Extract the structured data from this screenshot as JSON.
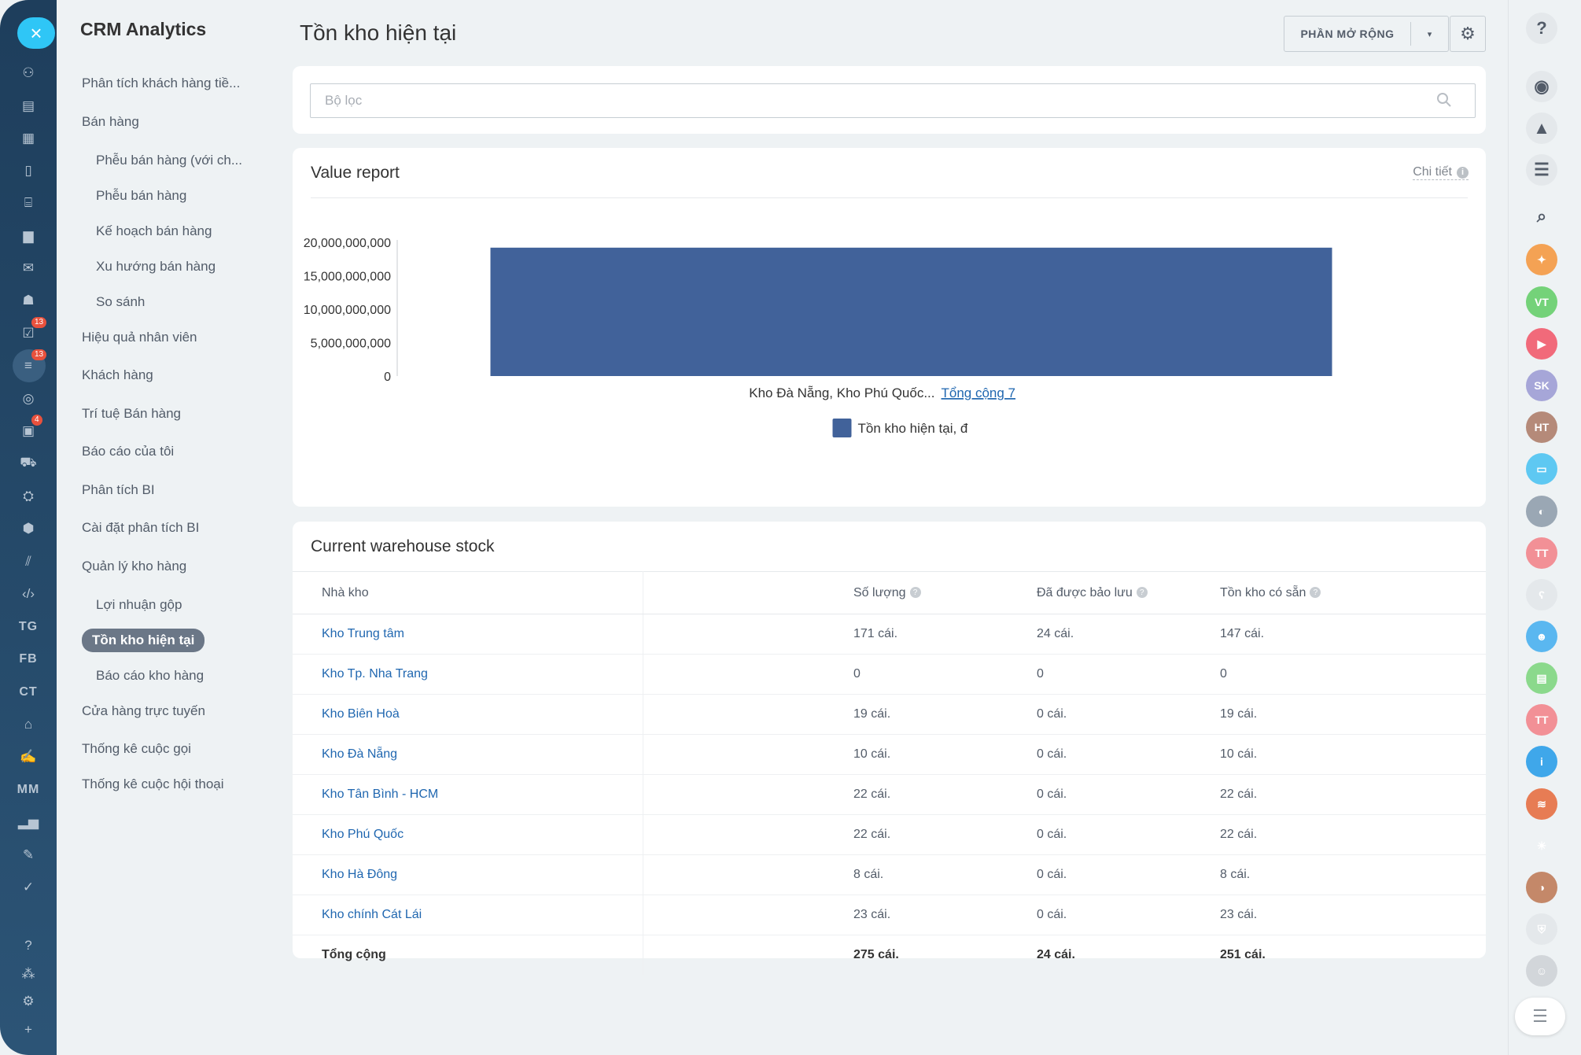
{
  "left_rail": {
    "close_glyph": "×",
    "icons": [
      {
        "name": "activity-icon",
        "glyph": "⚇",
        "top": 76
      },
      {
        "name": "feed-icon",
        "glyph": "▤",
        "top": 118
      },
      {
        "name": "calendar-icon",
        "glyph": "▦",
        "top": 159
      },
      {
        "name": "document-icon",
        "glyph": "▯",
        "top": 200
      },
      {
        "name": "inbox-icon",
        "glyph": "⌸",
        "top": 241
      },
      {
        "name": "chat-icon",
        "glyph": "▆",
        "top": 283
      },
      {
        "name": "mail-icon",
        "glyph": "✉",
        "top": 324
      },
      {
        "name": "contacts-icon",
        "glyph": "☗",
        "top": 365
      },
      {
        "name": "tasks-icon",
        "glyph": "☑",
        "top": 407,
        "badge": "13"
      },
      {
        "name": "funnel-icon",
        "glyph": "≡",
        "top": 448,
        "badge": "13",
        "active": true
      },
      {
        "name": "target-icon",
        "glyph": "◎",
        "top": 490
      },
      {
        "name": "crm-card-icon",
        "glyph": "▣",
        "top": 531,
        "badge": "4"
      },
      {
        "name": "cart-icon",
        "glyph": "⛟",
        "top": 572
      },
      {
        "name": "robot-icon",
        "glyph": "⛭",
        "top": 614
      },
      {
        "name": "box-icon",
        "glyph": "⬢",
        "top": 655
      },
      {
        "name": "analytics-icon",
        "glyph": "⫽",
        "top": 697
      },
      {
        "name": "code-icon",
        "glyph": "‹/›",
        "top": 738
      },
      {
        "name": "tg-label",
        "text": "TG",
        "top": 780
      },
      {
        "name": "fb-label",
        "text": "FB",
        "top": 821
      },
      {
        "name": "ct-label",
        "text": "CT",
        "top": 863
      },
      {
        "name": "bank-icon",
        "glyph": "⌂",
        "top": 904
      },
      {
        "name": "sign-icon",
        "glyph": "✍",
        "top": 945
      },
      {
        "name": "mm-label",
        "text": "MM",
        "top": 987
      },
      {
        "name": "bar-chart-icon",
        "glyph": "▂▅",
        "top": 1028
      },
      {
        "name": "edit-list-icon",
        "glyph": "✎",
        "top": 1070
      },
      {
        "name": "check-circle-icon",
        "glyph": "✓",
        "top": 1111
      },
      {
        "name": "help-icon",
        "glyph": "?",
        "top": 1185
      },
      {
        "name": "sitemap-icon",
        "glyph": "⁂",
        "top": 1221
      },
      {
        "name": "settings-icon",
        "glyph": "⚙",
        "top": 1256
      },
      {
        "name": "add-icon",
        "glyph": "+",
        "top": 1292
      }
    ]
  },
  "menu": {
    "title": "CRM Analytics",
    "items": [
      {
        "label": "Phân tích khách hàng tiề...",
        "top": 96,
        "level": 0
      },
      {
        "label": "Bán hàng",
        "top": 145,
        "level": 0
      },
      {
        "label": "Phễu bán hàng (với ch...",
        "top": 194,
        "level": 1
      },
      {
        "label": "Phễu bán hàng",
        "top": 239,
        "level": 1
      },
      {
        "label": "Kế hoạch bán hàng",
        "top": 284,
        "level": 1
      },
      {
        "label": "Xu hướng bán hàng",
        "top": 329,
        "level": 1
      },
      {
        "label": "So sánh",
        "top": 374,
        "level": 1
      },
      {
        "label": "Hiệu quả nhân viên",
        "top": 419,
        "level": 0
      },
      {
        "label": "Khách hàng",
        "top": 467,
        "level": 0
      },
      {
        "label": "Trí tuệ Bán hàng",
        "top": 516,
        "level": 0
      },
      {
        "label": "Báo cáo của tôi",
        "top": 564,
        "level": 0
      },
      {
        "label": "Phân tích BI",
        "top": 613,
        "level": 0
      },
      {
        "label": "Cài đặt phân tích BI",
        "top": 661,
        "level": 0
      },
      {
        "label": "Quản lý kho hàng",
        "top": 710,
        "level": 0
      },
      {
        "label": "Lợi nhuận gộp",
        "top": 759,
        "level": 1
      },
      {
        "label": "Tồn kho hiện tại",
        "top": 804,
        "level": 1,
        "active": true
      },
      {
        "label": "Báo cáo kho hàng",
        "top": 849,
        "level": 1
      },
      {
        "label": "Cửa hàng trực tuyến",
        "top": 894,
        "level": 0
      },
      {
        "label": "Thống kê cuộc gọi",
        "top": 942,
        "level": 0
      },
      {
        "label": "Thống kê cuộc hội thoại",
        "top": 987,
        "level": 0
      }
    ]
  },
  "header": {
    "title": "Tồn kho hiện tại",
    "extensions_label": "PHẦN MỞ RỘNG",
    "caret": "▾",
    "gear": "⚙"
  },
  "filter": {
    "placeholder": "Bộ lọc",
    "value": ""
  },
  "value_report": {
    "title": "Value report",
    "details_label": "Chi tiết",
    "info_glyph": "i",
    "category_label": "Kho Đà Nẵng, Kho Phú Quốc...",
    "total_link": "Tổng cộng 7"
  },
  "chart_data": {
    "type": "bar",
    "title": "Value report",
    "categories": [
      "Kho Đà Nẵng, Kho Phú Quốc... Tổng cộng 7"
    ],
    "series": [
      {
        "name": "Tồn kho hiện tại, đ",
        "color": "#41629a",
        "values": [
          19200000000
        ]
      }
    ],
    "yticks": [
      0,
      5000000000,
      10000000000,
      15000000000,
      20000000000
    ],
    "ytick_labels": [
      "0",
      "5,000,000,000",
      "10,000,000,000",
      "15,000,000,000",
      "20,000,000,000"
    ],
    "ylim": [
      0,
      20000000000
    ],
    "legend_position": "bottom-center",
    "grid": false
  },
  "stock": {
    "title": "Current warehouse stock",
    "columns": [
      "Nhà kho",
      "Số lượng",
      "Đã được bảo lưu",
      "Tồn kho có sẵn"
    ],
    "hint_glyph": "?",
    "rows": [
      [
        "Kho Trung tâm",
        "171 cái.",
        "24 cái.",
        "147 cái."
      ],
      [
        "Kho Tp. Nha Trang",
        "0",
        "0",
        "0"
      ],
      [
        "Kho Biên Hoà",
        "19 cái.",
        "0 cái.",
        "19 cái."
      ],
      [
        "Kho Đà Nẵng",
        "10 cái.",
        "0 cái.",
        "10 cái."
      ],
      [
        "Kho Tân Bình - HCM",
        "22 cái.",
        "0 cái.",
        "22 cái."
      ],
      [
        "Kho Phú Quốc",
        "22 cái.",
        "0 cái.",
        "22 cái."
      ],
      [
        "Kho Hà Đông",
        "8 cái.",
        "0 cái.",
        "8 cái."
      ],
      [
        "Kho chính Cát Lái",
        "23 cái.",
        "0 cái.",
        "23 cái."
      ]
    ],
    "total": [
      "Tổng cộng",
      "275 cái.",
      "24 cái.",
      "251 cái."
    ]
  },
  "right_rail": {
    "items": [
      {
        "name": "help-icon",
        "glyph": "?",
        "top": 16,
        "bg": "#e4e8eb",
        "plain": true
      },
      {
        "name": "copilot-icon",
        "glyph": "◉",
        "top": 90,
        "bg": "#e4e8eb",
        "plain": true
      },
      {
        "name": "bell-icon",
        "glyph": "▲",
        "top": 143,
        "bg": "#e4e8eb",
        "plain": true
      },
      {
        "name": "messages-icon",
        "glyph": "☰",
        "top": 196,
        "bg": "#e4e8eb",
        "plain": true
      },
      {
        "name": "search-icon",
        "glyph": "⌕",
        "top": 255,
        "bg": "transparent",
        "plain": true
      },
      {
        "name": "marketing-avatar",
        "glyph": "✦",
        "top": 310,
        "bg": "#f4a254"
      },
      {
        "name": "avatar-vt",
        "glyph": "VT",
        "top": 364,
        "bg": "#74d279"
      },
      {
        "name": "video-icon",
        "glyph": "▶",
        "top": 417,
        "bg": "#f16a7a"
      },
      {
        "name": "avatar-sk",
        "glyph": "SK",
        "top": 470,
        "bg": "#a6a6d8"
      },
      {
        "name": "avatar-ht",
        "glyph": "HT",
        "top": 523,
        "bg": "#b58a79"
      },
      {
        "name": "chat-bubble-icon",
        "glyph": "▭",
        "top": 576,
        "bg": "#5ec8f2"
      },
      {
        "name": "photo-avatar-1",
        "glyph": "◐",
        "top": 630,
        "bg": "#9aa7b4"
      },
      {
        "name": "avatar-tt",
        "glyph": "TT",
        "top": 683,
        "bg": "#f29096"
      },
      {
        "name": "bear-icon",
        "glyph": "ʕ",
        "top": 736,
        "bg": "#e4e8eb"
      },
      {
        "name": "group-icon",
        "glyph": "☻",
        "top": 789,
        "bg": "#5ab7f0"
      },
      {
        "name": "notes-icon",
        "glyph": "▤",
        "top": 842,
        "bg": "#8bd98c"
      },
      {
        "name": "avatar-tt-2",
        "glyph": "TT",
        "top": 895,
        "bg": "#f29096"
      },
      {
        "name": "info-icon",
        "glyph": "i",
        "top": 948,
        "bg": "#3fa7ea"
      },
      {
        "name": "group-avatar",
        "glyph": "≋",
        "top": 1002,
        "bg": "#e77c54"
      },
      {
        "name": "bulb-icon",
        "glyph": "☀",
        "top": 1055,
        "bg": "transparent"
      },
      {
        "name": "photo-avatar-2",
        "glyph": "◑",
        "top": 1108,
        "bg": "#c48869"
      },
      {
        "name": "security-icon",
        "glyph": "⛨",
        "top": 1161,
        "bg": "#e4e8eb"
      },
      {
        "name": "photo-avatar-3",
        "glyph": "☺",
        "top": 1214,
        "bg": "#d2d6da"
      }
    ],
    "menu_glyph": "☰"
  }
}
